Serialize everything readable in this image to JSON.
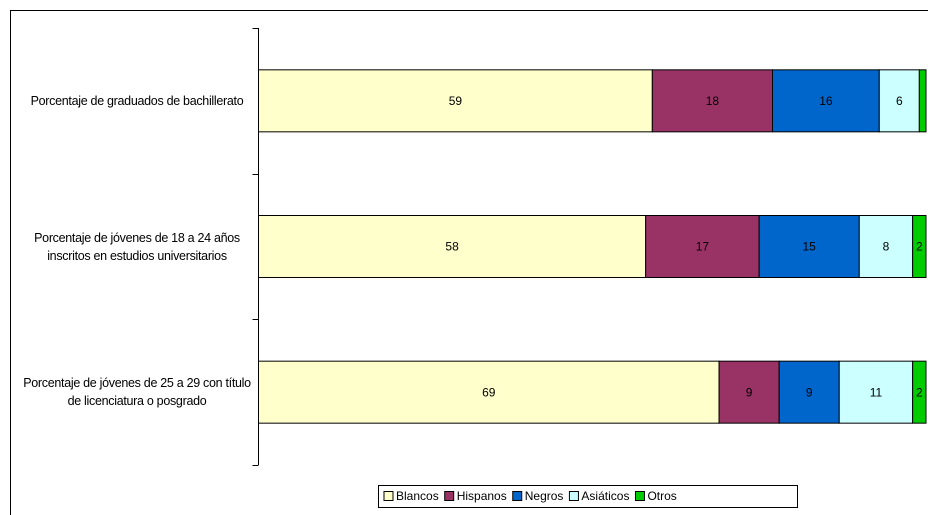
{
  "chart_data": {
    "type": "stacked-bar-horizontal",
    "categories": [
      "Porcentaje de graduados de bachillerato",
      "Porcentaje de jóvenes de 18 a 24 años inscritos en estudios universitarios",
      "Porcentaje de jóvenes de 25 a 29 con título de licenciatura o posgrado"
    ],
    "series": [
      {
        "name": "Blancos",
        "color": "#ffffcc",
        "values": [
          59,
          58,
          69
        ]
      },
      {
        "name": "Hispanos",
        "color": "#993366",
        "values": [
          18,
          17,
          9
        ]
      },
      {
        "name": "Negros",
        "color": "#0066cc",
        "values": [
          16,
          15,
          9
        ]
      },
      {
        "name": "Asiáticos",
        "color": "#ccffff",
        "values": [
          6,
          8,
          11
        ]
      },
      {
        "name": "Otros",
        "color": "#00cc00",
        "values": [
          1,
          2,
          2
        ]
      }
    ],
    "xlim": [
      0,
      100
    ],
    "legend": "bottom"
  }
}
